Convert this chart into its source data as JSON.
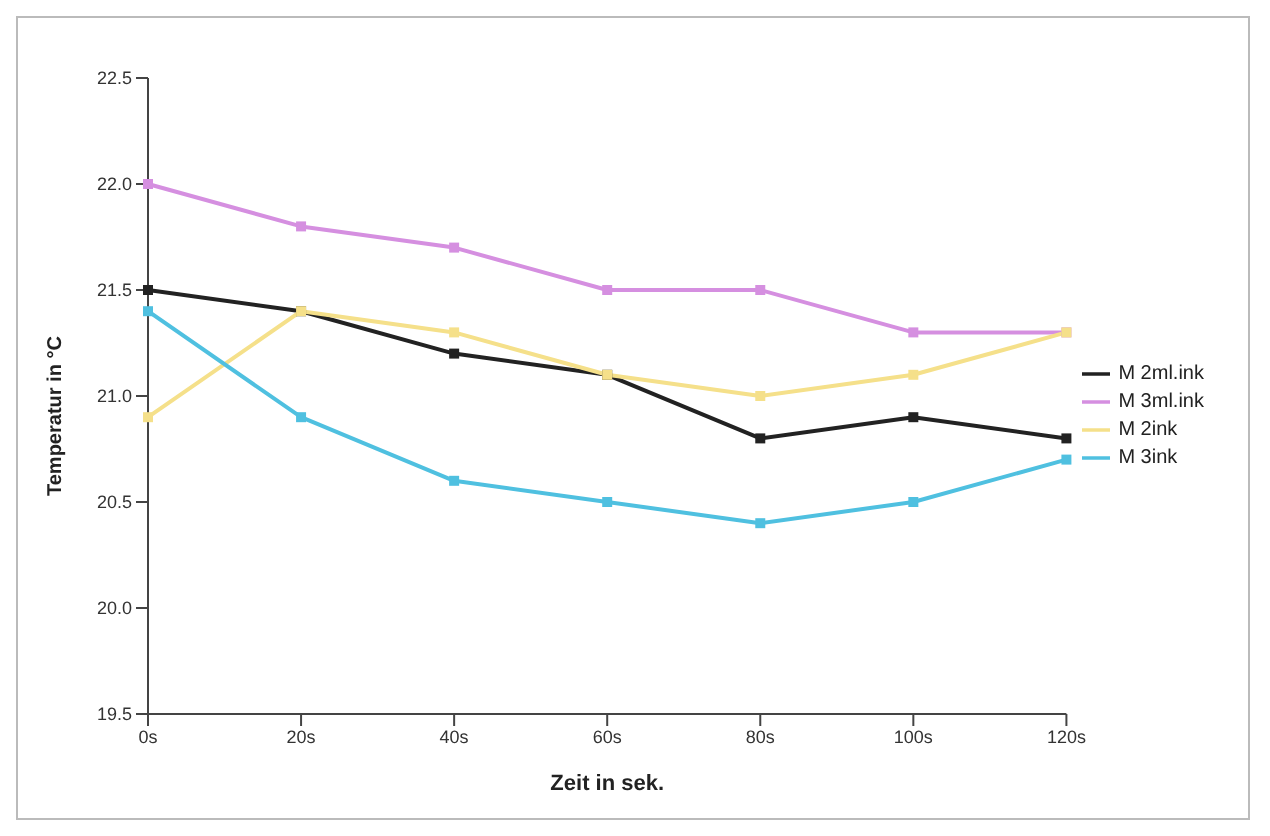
{
  "chart_data": {
    "type": "line",
    "xlabel": "Zeit in sek.",
    "ylabel": "Temperatur in °C",
    "categories": [
      "0s",
      "20s",
      "40s",
      "60s",
      "80s",
      "100s",
      "120s"
    ],
    "series": [
      {
        "name": "M 2ml.ink",
        "color": "#222222",
        "values": [
          21.5,
          21.4,
          21.2,
          21.1,
          20.8,
          20.9,
          20.8
        ]
      },
      {
        "name": "M 3ml.ink",
        "color": "#d58fe0",
        "values": [
          22.0,
          21.8,
          21.7,
          21.5,
          21.5,
          21.3,
          21.3
        ]
      },
      {
        "name": "M 2ink",
        "color": "#f5e08a",
        "values": [
          20.9,
          21.4,
          21.3,
          21.1,
          21.0,
          21.1,
          21.3
        ]
      },
      {
        "name": "M 3ink",
        "color": "#4fc0e0",
        "values": [
          21.4,
          20.9,
          20.6,
          20.5,
          20.4,
          20.5,
          20.7
        ]
      }
    ],
    "ylim": [
      19.5,
      22.5
    ],
    "yticks": [
      19.5,
      {
        "value": 20,
        "label": "20.0"
      },
      20.5,
      {
        "value": 21,
        "label": "21.0"
      },
      21.5,
      {
        "value": 22,
        "label": "22.0"
      },
      22.5
    ],
    "marker": "square",
    "legend": "right",
    "grid": false
  }
}
